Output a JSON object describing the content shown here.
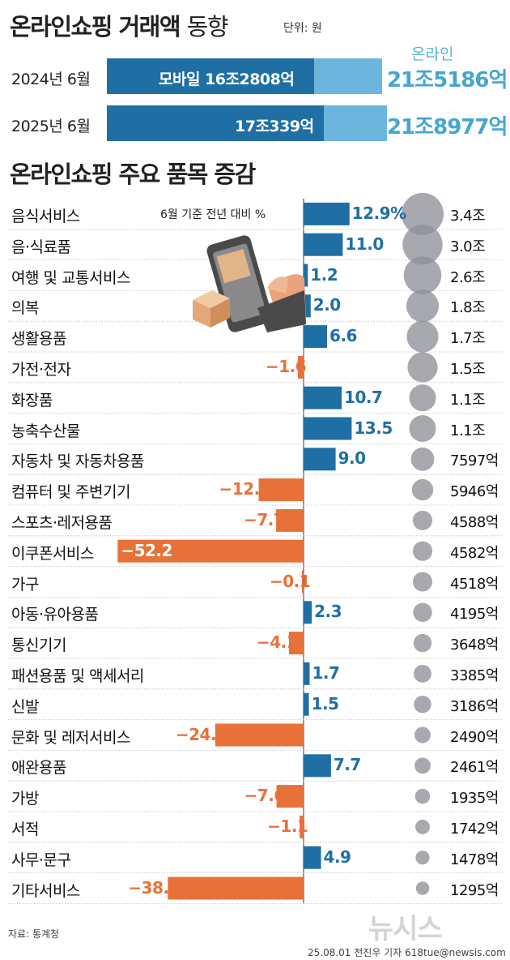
{
  "title_bold": "온라인쇼핑 거래액",
  "title_light": "동향",
  "unit_label": "단위: 원",
  "summary": {
    "online_label": "온라인",
    "rows": [
      {
        "year": "2024년 6월",
        "mobile_text": "모바일 16조2808억",
        "online_text": "21조5186억",
        "mobile_value": 162808,
        "online_value": 215186
      },
      {
        "year": "2025년 6월",
        "mobile_text": "17조339억",
        "online_text": "21조8977억",
        "mobile_value": 170339,
        "online_value": 218977
      }
    ]
  },
  "section_title": "온라인쇼핑 주요 품목 증감",
  "chart_data": {
    "type": "bar",
    "note": "6월 기준 전년 대비 %",
    "categories": [
      "음식서비스",
      "음·식료품",
      "여행 및 교통서비스",
      "의복",
      "생활용품",
      "가전·전자",
      "화장품",
      "농축수산물",
      "자동차 및 자동차용품",
      "컴퓨터 및 주변기기",
      "스포츠·레저용품",
      "이쿠폰서비스",
      "가구",
      "아동·유아용품",
      "통신기기",
      "패션용품 및 액세서리",
      "신발",
      "문화 및 레저서비스",
      "애완용품",
      "가방",
      "서적",
      "사무·문구",
      "기타서비스"
    ],
    "values": [
      12.9,
      11.0,
      1.2,
      2.0,
      6.6,
      -1.6,
      10.7,
      13.5,
      9.0,
      -12.6,
      -7.7,
      -52.2,
      -0.1,
      2.3,
      -4.1,
      1.7,
      1.5,
      -24.8,
      7.7,
      -7.6,
      -1.1,
      4.9,
      -38.1
    ],
    "value_labels": [
      "12.9%",
      "11.0",
      "1.2",
      "2.0",
      "6.6",
      "−1.6",
      "10.7",
      "13.5",
      "9.0",
      "−12.6",
      "−7.7",
      "−52.2",
      "−0.1",
      "2.3",
      "−4.1",
      "1.7",
      "1.5",
      "−24.8",
      "7.7",
      "−7.6",
      "−1.1",
      "4.9",
      "−38.1"
    ],
    "amount_labels": [
      "3.4조",
      "3.0조",
      "2.6조",
      "1.8조",
      "1.7조",
      "1.5조",
      "1.1조",
      "1.1조",
      "7597억",
      "5946억",
      "4588억",
      "4582억",
      "4518억",
      "4195억",
      "3648억",
      "3385억",
      "3186억",
      "2490억",
      "2461억",
      "1935억",
      "1742억",
      "1478억",
      "1295억"
    ],
    "amounts_eok": [
      34000,
      30000,
      26000,
      18000,
      17000,
      15000,
      11000,
      11000,
      7597,
      5946,
      4588,
      4582,
      4518,
      4195,
      3648,
      3385,
      3186,
      2490,
      2461,
      1935,
      1742,
      1478,
      1295
    ],
    "colors": {
      "positive": "#1f6fa4",
      "negative": "#e8713a",
      "circle": "#8e9198",
      "label_positive": "#1f6fa4",
      "label_negative": "#e8713a"
    }
  },
  "colors": {
    "mobile_bar": "#1f6fa4",
    "online_bar": "#6cb6dc",
    "online_text": "#46a6d2"
  },
  "source": "자료: 통계청",
  "credit": "25.08.01 전진우 기자 618tue@newsis.com",
  "logo_text": "뉴시스"
}
